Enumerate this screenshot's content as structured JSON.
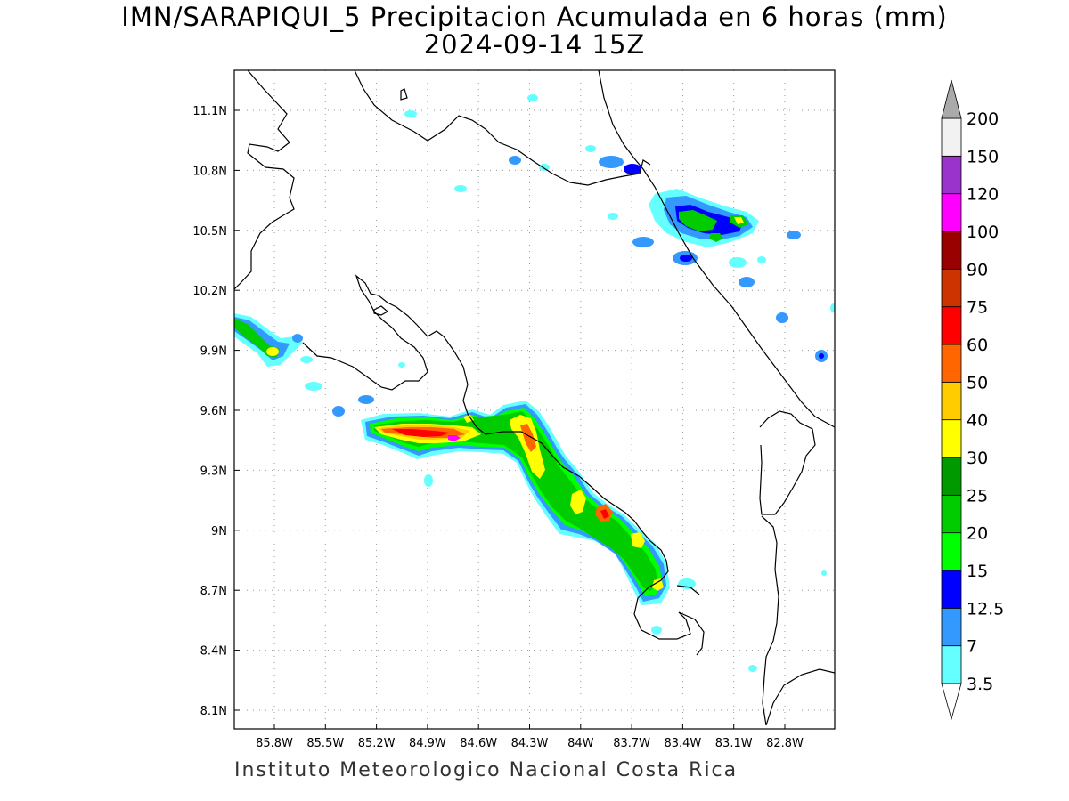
{
  "title": {
    "line1": "IMN/SARAPIQUI_5 Precipitacion Acumulada en 6 horas (mm)",
    "line2": "2024-09-14 15Z"
  },
  "footer": "Instituto Meteorologico Nacional Costa Rica",
  "map": {
    "lon_ticks": [
      "85.8W",
      "85.5W",
      "85.2W",
      "84.9W",
      "84.6W",
      "84.3W",
      "84W",
      "83.7W",
      "83.4W",
      "83.1W",
      "82.8W"
    ],
    "lat_ticks": [
      "11.1N",
      "10.8N",
      "10.5N",
      "10.2N",
      "9.9N",
      "9.6N",
      "9.3N",
      "9N",
      "8.7N",
      "8.4N",
      "8.1N"
    ],
    "grid": "dotted"
  },
  "colorbar": {
    "labels": [
      "3.5",
      "7",
      "12.5",
      "15",
      "20",
      "25",
      "30",
      "40",
      "50",
      "60",
      "75",
      "90",
      "100",
      "120",
      "150",
      "200"
    ],
    "colors": [
      "#66ffff",
      "#3399ff",
      "#0000ff",
      "#00ff00",
      "#00cc00",
      "#009900",
      "#ffff00",
      "#ffcc00",
      "#ff6600",
      "#ff0000",
      "#cc3300",
      "#990000",
      "#ff00ff",
      "#9933cc",
      "#f2f2f2"
    ],
    "top_arrow_color": "#aaaaaa",
    "bottom_arrow_color": "#ffffff",
    "unit": "mm"
  }
}
